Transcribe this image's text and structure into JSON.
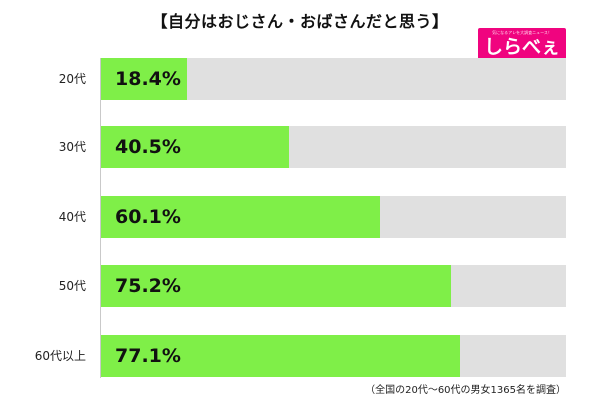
{
  "title": "【自分はおじさん・おばさんだと思う】",
  "logo": {
    "text": "しらべぇ",
    "subtext": "気になるアレを大調査ニュース！",
    "color": "#f0047f"
  },
  "footnote": "（全国の20代～60代の男女1365名を調査）",
  "colors": {
    "bar": "#7fef48",
    "track": "#e0e0e0"
  },
  "chart_data": {
    "type": "bar",
    "orientation": "horizontal",
    "title": "【自分はおじさん・おばさんだと思う】",
    "categories": [
      "20代",
      "30代",
      "40代",
      "50代",
      "60代以上"
    ],
    "values": [
      18.4,
      40.5,
      60.1,
      75.2,
      77.1
    ],
    "value_labels": [
      "18.4%",
      "40.5%",
      "60.1%",
      "75.2%",
      "77.1%"
    ],
    "xlim": [
      0,
      100
    ],
    "unit": "%",
    "grid": false,
    "legend": "none"
  }
}
